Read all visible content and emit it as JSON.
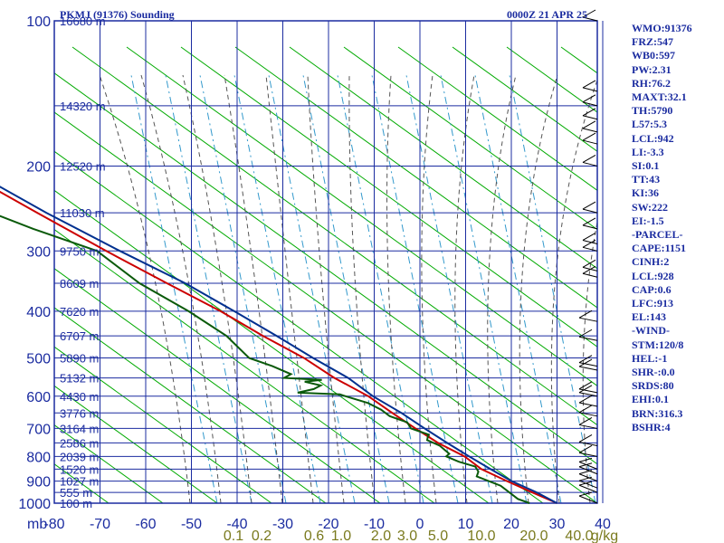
{
  "header": {
    "station": "PKMJ (91376) Sounding",
    "time": "0000Z 21 APR 25"
  },
  "indices": [
    "WMO:91376",
    "FRZ:547",
    "WB0:597",
    "PW:2.31",
    "RH:76.2",
    "MAXT:32.1",
    "TH:5790",
    "L57:5.3",
    "LCL:942",
    "LI:-3.3",
    "SI:0.1",
    "TT:43",
    "KI:36",
    "SW:222",
    "EI:-1.5",
    "-PARCEL-",
    "CAPE:1151",
    "CINH:2",
    "LCL:928",
    "CAP:0.6",
    "LFC:913",
    "EL:143",
    "-WIND-",
    "STM:120/8",
    "HEL:-1",
    "SHR-:0.0",
    "SRDS:80",
    "EHI:0.1",
    "BRN:316.3",
    "BSHR:4"
  ],
  "chart_data": {
    "type": "line",
    "title": "PKMJ (91376) Sounding",
    "subtitle": "0000Z 21 APR 25",
    "ylabel": "mb",
    "y_scale": "log",
    "y_reversed": true,
    "ylim": [
      100,
      1000
    ],
    "xlim": [
      -80,
      0
    ],
    "x_ticks": [
      -80,
      -70,
      -60,
      -50,
      -40,
      -30,
      -20,
      -10,
      0,
      10,
      20,
      30,
      40
    ],
    "x_tick_labels": [
      "-80",
      "-70",
      "-60",
      "-50",
      "-40",
      "-30",
      "-20",
      "-10",
      "0",
      "10",
      "20",
      "30",
      "40"
    ],
    "y_ticks": [
      100,
      200,
      300,
      400,
      500,
      600,
      700,
      800,
      900,
      1000
    ],
    "mixing_ratio_labels": [
      "0.1",
      "0.2",
      "0.6",
      "1.0",
      "2.0",
      "3.0",
      "5.0",
      "10.0",
      "20.0",
      "40.0",
      "g/kg"
    ],
    "height_labels": [
      {
        "p": 100,
        "text": "16680 m"
      },
      {
        "p": 150,
        "text": "14320 m"
      },
      {
        "p": 200,
        "text": "12520 m"
      },
      {
        "p": 250,
        "text": "11030 m"
      },
      {
        "p": 300,
        "text": "9750 m"
      },
      {
        "p": 350,
        "text": "8609 m"
      },
      {
        "p": 400,
        "text": "7620 m"
      },
      {
        "p": 450,
        "text": "6707 m"
      },
      {
        "p": 500,
        "text": "5890 m"
      },
      {
        "p": 550,
        "text": "5132 m"
      },
      {
        "p": 600,
        "text": "4430 m"
      },
      {
        "p": 650,
        "text": "3776 m"
      },
      {
        "p": 700,
        "text": "3164 m"
      },
      {
        "p": 750,
        "text": "2586 m"
      },
      {
        "p": 800,
        "text": "2039 m"
      },
      {
        "p": 850,
        "text": "1520 m"
      },
      {
        "p": 900,
        "text": "1027 m"
      },
      {
        "p": 950,
        "text": "555 m"
      },
      {
        "p": 1000,
        "text": "100 m"
      }
    ],
    "series": [
      {
        "color": "#cc0000",
        "points": [
          [
            100,
            -79
          ],
          [
            150,
            -68
          ],
          [
            200,
            -57
          ],
          [
            250,
            -45
          ],
          [
            300,
            -35
          ],
          [
            350,
            -26
          ],
          [
            400,
            -18
          ],
          [
            450,
            -12
          ],
          [
            500,
            -6
          ],
          [
            550,
            -2
          ],
          [
            600,
            3
          ],
          [
            650,
            6
          ],
          [
            700,
            9
          ],
          [
            750,
            12
          ],
          [
            800,
            16
          ],
          [
            850,
            18
          ],
          [
            900,
            22
          ],
          [
            950,
            26
          ],
          [
            1000,
            30
          ]
        ]
      },
      {
        "color": "#00308f",
        "points": [
          [
            100,
            -78
          ],
          [
            150,
            -66
          ],
          [
            200,
            -55
          ],
          [
            250,
            -43
          ],
          [
            300,
            -32
          ],
          [
            350,
            -22
          ],
          [
            400,
            -15
          ],
          [
            450,
            -9
          ],
          [
            500,
            -4
          ],
          [
            550,
            1
          ],
          [
            600,
            4
          ],
          [
            650,
            8
          ],
          [
            700,
            11
          ],
          [
            750,
            14
          ],
          [
            800,
            17
          ],
          [
            850,
            20
          ],
          [
            900,
            23
          ],
          [
            950,
            27
          ],
          [
            1000,
            30
          ]
        ]
      },
      {
        "color": "#0a5a0a",
        "points": [
          [
            100,
            -81
          ],
          [
            150,
            -73
          ],
          [
            175,
            -67
          ],
          [
            200,
            -64
          ],
          [
            220,
            -60
          ],
          [
            250,
            -55
          ],
          [
            270,
            -48
          ],
          [
            300,
            -37
          ],
          [
            350,
            -32
          ],
          [
            400,
            -25
          ],
          [
            450,
            -20
          ],
          [
            500,
            -18
          ],
          [
            520,
            -14
          ],
          [
            540,
            -11
          ],
          [
            550,
            -13
          ],
          [
            555,
            -5
          ],
          [
            560,
            -9
          ],
          [
            570,
            -6
          ],
          [
            580,
            -8
          ],
          [
            590,
            -12
          ],
          [
            595,
            -3
          ],
          [
            600,
            -2
          ],
          [
            610,
            0
          ],
          [
            620,
            2
          ],
          [
            640,
            4
          ],
          [
            660,
            5
          ],
          [
            680,
            8
          ],
          [
            700,
            8
          ],
          [
            720,
            11
          ],
          [
            740,
            10
          ],
          [
            760,
            12
          ],
          [
            790,
            13
          ],
          [
            800,
            12
          ],
          [
            820,
            14
          ],
          [
            840,
            17
          ],
          [
            860,
            17
          ],
          [
            880,
            16
          ],
          [
            900,
            18
          ],
          [
            920,
            20
          ],
          [
            950,
            21
          ],
          [
            980,
            22
          ],
          [
            1000,
            24
          ]
        ]
      }
    ],
    "grid": true,
    "colors": {
      "frame": "#1b2ca0",
      "dry_adiabat": "#00aa00",
      "moist_adiabat": "#555555",
      "mixing_ratio": "#3399cc"
    }
  }
}
